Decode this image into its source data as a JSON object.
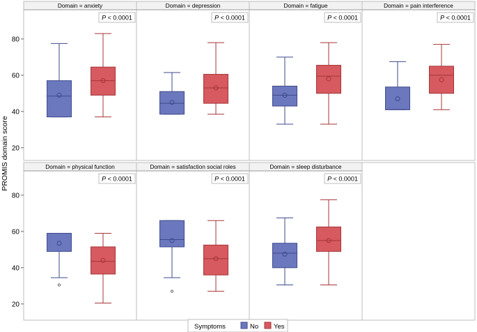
{
  "chart_data": {
    "type": "box",
    "ylabel": "PROMIS domain score",
    "ylim": [
      18,
      94
    ],
    "yticks": [
      20,
      40,
      60,
      80
    ],
    "panel_prefix": "Domain = ",
    "legend": {
      "title": "Symptoms",
      "entries": [
        {
          "name": "No",
          "color": "#6c78bd",
          "stroke": "#3e4a8c"
        },
        {
          "name": "Yes",
          "color": "#d65a5f",
          "stroke": "#a6353a"
        }
      ]
    },
    "panels": [
      {
        "domain": "anxiety",
        "pvalue": "< 0.0001",
        "groups": [
          {
            "name": "No",
            "whisker_low": 37,
            "q1": 37,
            "median": 48.5,
            "q3": 57,
            "whisker_high": 77.5,
            "mean": 49,
            "outliers": []
          },
          {
            "name": "Yes",
            "whisker_low": 37,
            "q1": 49,
            "median": 57,
            "q3": 64.5,
            "whisker_high": 83,
            "mean": 57,
            "outliers": []
          }
        ]
      },
      {
        "domain": "depression",
        "pvalue": "< 0.0001",
        "groups": [
          {
            "name": "No",
            "whisker_low": 38.5,
            "q1": 38.5,
            "median": 44.5,
            "q3": 51,
            "whisker_high": 61.5,
            "mean": 45,
            "outliers": []
          },
          {
            "name": "Yes",
            "whisker_low": 38.5,
            "q1": 44.5,
            "median": 53,
            "q3": 60.5,
            "whisker_high": 78,
            "mean": 53,
            "outliers": []
          }
        ]
      },
      {
        "domain": "fatigue",
        "pvalue": "< 0.0001",
        "groups": [
          {
            "name": "No",
            "whisker_low": 33,
            "q1": 43,
            "median": 49,
            "q3": 54,
            "whisker_high": 70,
            "mean": 49,
            "outliers": []
          },
          {
            "name": "Yes",
            "whisker_low": 33,
            "q1": 50,
            "median": 59.5,
            "q3": 65.5,
            "whisker_high": 78,
            "mean": 58,
            "outliers": []
          }
        ]
      },
      {
        "domain": "pain interference",
        "pvalue": "< 0.0001",
        "groups": [
          {
            "name": "No",
            "whisker_low": 41,
            "q1": 41,
            "median": 41,
            "q3": 53.5,
            "whisker_high": 67.5,
            "mean": 47,
            "outliers": []
          },
          {
            "name": "Yes",
            "whisker_low": 41,
            "q1": 50,
            "median": 60,
            "q3": 65,
            "whisker_high": 77,
            "mean": 57.5,
            "outliers": []
          }
        ]
      },
      {
        "domain": "physical function",
        "pvalue": "< 0.0001",
        "groups": [
          {
            "name": "No",
            "whisker_low": 34.5,
            "q1": 49,
            "median": 59,
            "q3": 59,
            "whisker_high": 59,
            "mean": 53.5,
            "outliers": [
              30.5
            ]
          },
          {
            "name": "Yes",
            "whisker_low": 20.5,
            "q1": 36.5,
            "median": 43.5,
            "q3": 51.5,
            "whisker_high": 59,
            "mean": 44,
            "outliers": []
          }
        ]
      },
      {
        "domain": "satisfaction social roles",
        "pvalue": "< 0.0001",
        "groups": [
          {
            "name": "No",
            "whisker_low": 34.5,
            "q1": 51.5,
            "median": 55.5,
            "q3": 66,
            "whisker_high": 66,
            "mean": 55,
            "outliers": [
              27
            ]
          },
          {
            "name": "Yes",
            "whisker_low": 27,
            "q1": 36,
            "median": 45,
            "q3": 52.5,
            "whisker_high": 66,
            "mean": 45,
            "outliers": []
          }
        ]
      },
      {
        "domain": "sleep disturbance",
        "pvalue": "< 0.0001",
        "groups": [
          {
            "name": "No",
            "whisker_low": 30.5,
            "q1": 40,
            "median": 48,
            "q3": 53.5,
            "whisker_high": 67.5,
            "mean": 47.5,
            "outliers": []
          },
          {
            "name": "Yes",
            "whisker_low": 30.5,
            "q1": 49,
            "median": 55,
            "q3": 62.5,
            "whisker_high": 77.5,
            "mean": 55,
            "outliers": []
          }
        ]
      }
    ]
  }
}
